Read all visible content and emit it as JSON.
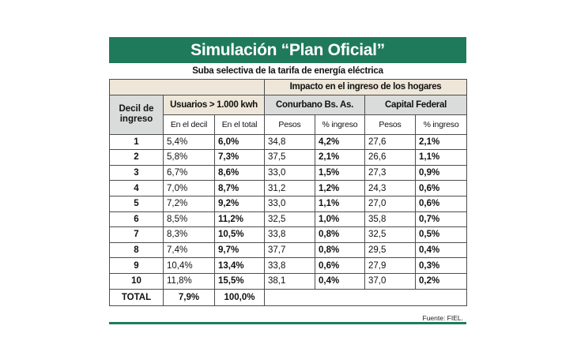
{
  "title": "Simulación “Plan Oficial”",
  "subtitle": "Suba selectiva de la tarifa de energía eléctrica",
  "headers": {
    "impacto": "Impacto en el ingreso de los hogares",
    "decil": "Decil de\ningreso",
    "usuarios": "Usuarios > 1.000 kwh",
    "conurbano": "Conurbano Bs. As.",
    "capital": "Capital Federal",
    "en_decil": "En el decil",
    "en_total": "En el total",
    "pesos_1": "Pesos",
    "pct_1": "% ingreso",
    "pesos_2": "Pesos",
    "pct_2": "% ingreso"
  },
  "rows": [
    {
      "decil": "1",
      "en_decil": "5,4%",
      "en_total": "6,0%",
      "con_pesos": "34,8",
      "con_pct": "4,2%",
      "cap_pesos": "27,6",
      "cap_pct": "2,1%"
    },
    {
      "decil": "2",
      "en_decil": "5,8%",
      "en_total": "7,3%",
      "con_pesos": "37,5",
      "con_pct": "2,1%",
      "cap_pesos": "26,6",
      "cap_pct": "1,1%"
    },
    {
      "decil": "3",
      "en_decil": "6,7%",
      "en_total": "8,6%",
      "con_pesos": "33,0",
      "con_pct": "1,5%",
      "cap_pesos": "27,3",
      "cap_pct": "0,9%"
    },
    {
      "decil": "4",
      "en_decil": "7,0%",
      "en_total": "8,7%",
      "con_pesos": "31,2",
      "con_pct": "1,2%",
      "cap_pesos": "24,3",
      "cap_pct": "0,6%"
    },
    {
      "decil": "5",
      "en_decil": "7,2%",
      "en_total": "9,2%",
      "con_pesos": "33,0",
      "con_pct": "1,1%",
      "cap_pesos": "27,0",
      "cap_pct": "0,6%"
    },
    {
      "decil": "6",
      "en_decil": "8,5%",
      "en_total": "11,2%",
      "con_pesos": "32,5",
      "con_pct": "1,0%",
      "cap_pesos": "35,8",
      "cap_pct": "0,7%"
    },
    {
      "decil": "7",
      "en_decil": "8,3%",
      "en_total": "10,5%",
      "con_pesos": "33,8",
      "con_pct": "0,8%",
      "cap_pesos": "32,5",
      "cap_pct": "0,5%"
    },
    {
      "decil": "8",
      "en_decil": "7,4%",
      "en_total": "9,7%",
      "con_pesos": "37,7",
      "con_pct": "0,8%",
      "cap_pesos": "29,5",
      "cap_pct": "0,4%"
    },
    {
      "decil": "9",
      "en_decil": "10,4%",
      "en_total": "13,4%",
      "con_pesos": "33,8",
      "con_pct": "0,6%",
      "cap_pesos": "27,9",
      "cap_pct": "0,3%"
    },
    {
      "decil": "10",
      "en_decil": "11,8%",
      "en_total": "15,5%",
      "con_pesos": "38,1",
      "con_pct": "0,4%",
      "cap_pesos": "37,0",
      "cap_pct": "0,2%"
    }
  ],
  "total": {
    "label": "TOTAL",
    "en_decil": "7,9%",
    "en_total": "100,0%"
  },
  "source": "Fuente: FIEL.",
  "colors": {
    "accent": "#1f7a5c",
    "beige": "#eee6d8",
    "gray": "#d9dcdb"
  }
}
